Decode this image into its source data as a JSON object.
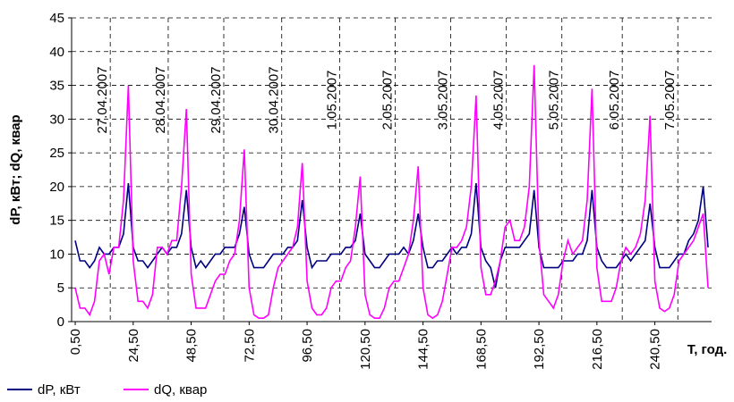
{
  "chart_data": {
    "type": "line",
    "y_label": "dP, кВт; dQ, квар",
    "x_label": "T, год.",
    "x": [
      0.5,
      2.5,
      4.5,
      6.5,
      8.5,
      10.5,
      12.5,
      14.5,
      16.5,
      18.5,
      20.5,
      22.5,
      24.5,
      26.5,
      28.5,
      30.5,
      32.5,
      34.5,
      36.5,
      38.5,
      40.5,
      42.5,
      44.5,
      46.5,
      48.5,
      50.5,
      52.5,
      54.5,
      56.5,
      58.5,
      60.5,
      62.5,
      64.5,
      66.5,
      68.5,
      70.5,
      72.5,
      74.5,
      76.5,
      78.5,
      80.5,
      82.5,
      84.5,
      86.5,
      88.5,
      90.5,
      92.5,
      94.5,
      96.5,
      98.5,
      100.5,
      102.5,
      104.5,
      106.5,
      108.5,
      110.5,
      112.5,
      114.5,
      116.5,
      118.5,
      120.5,
      122.5,
      124.5,
      126.5,
      128.5,
      130.5,
      132.5,
      134.5,
      136.5,
      138.5,
      140.5,
      142.5,
      144.5,
      146.5,
      148.5,
      150.5,
      152.5,
      154.5,
      156.5,
      158.5,
      160.5,
      162.5,
      164.5,
      166.5,
      168.5,
      170.5,
      172.5,
      174.5,
      176.5,
      178.5,
      180.5,
      182.5,
      184.5,
      186.5,
      188.5,
      190.5,
      192.5,
      194.5,
      196.5,
      198.5,
      200.5,
      202.5,
      204.5,
      206.5,
      208.5,
      210.5,
      212.5,
      214.5,
      216.5,
      218.5,
      220.5,
      222.5,
      224.5,
      226.5,
      228.5,
      230.5,
      232.5,
      234.5,
      236.5,
      238.5,
      240.5,
      242.5,
      244.5,
      246.5,
      248.5,
      250.5,
      252.5,
      254.5,
      256.5,
      258.5,
      260.5,
      262.5
    ],
    "series": [
      {
        "name": "dP, кВт",
        "color": "#000080",
        "values": [
          12,
          9,
          9,
          8,
          9,
          11,
          10,
          10,
          11,
          11,
          13,
          20.5,
          11,
          9,
          9,
          8,
          9,
          10,
          11,
          10,
          11,
          11,
          13,
          19.5,
          11,
          8,
          9,
          8,
          9,
          10,
          10,
          11,
          11,
          11,
          13,
          17,
          10,
          8,
          8,
          8,
          9,
          10,
          10,
          10,
          11,
          11,
          12,
          18,
          11,
          8,
          9,
          9,
          9,
          10,
          10,
          10,
          11,
          11,
          12,
          16,
          10,
          9,
          8,
          8,
          9,
          10,
          10,
          10,
          11,
          10,
          12,
          16,
          11,
          8,
          8,
          9,
          9,
          10,
          11,
          10,
          11,
          11,
          13,
          20.5,
          11,
          9,
          8,
          5,
          9,
          11,
          11,
          11,
          11,
          12,
          13,
          19.5,
          11,
          8,
          8,
          8,
          8,
          9,
          9,
          9,
          10,
          10,
          12,
          19.5,
          11,
          9,
          8,
          8,
          8,
          9,
          10,
          9,
          10,
          11,
          12,
          17.5,
          11,
          8,
          8,
          8,
          9,
          10,
          10,
          12,
          13,
          15,
          20,
          11
        ]
      },
      {
        "name": "dQ, квар",
        "color": "#ff00ff",
        "values": [
          5,
          2,
          2,
          1,
          3,
          9,
          10,
          7,
          11,
          11,
          18,
          35,
          9,
          3,
          3,
          2,
          4,
          11,
          11,
          10,
          12,
          12,
          20,
          31.5,
          7,
          2,
          2,
          2,
          4,
          6,
          7,
          7,
          9,
          10,
          15,
          25.5,
          5,
          1,
          0.5,
          0.5,
          1,
          5,
          8,
          9,
          10,
          11,
          14,
          23.5,
          6,
          2,
          1,
          1,
          2,
          5,
          6,
          6,
          8,
          9,
          14,
          21.5,
          4,
          1,
          0.5,
          0.5,
          2,
          5,
          6,
          6,
          8,
          10,
          15,
          23,
          5,
          1,
          0.5,
          1,
          3,
          7,
          11,
          11,
          12,
          14,
          20,
          33.5,
          8,
          4,
          4,
          6,
          9,
          14,
          15,
          12,
          12,
          14,
          20,
          38,
          12,
          4,
          3,
          2,
          4,
          9,
          12,
          10,
          11,
          12,
          18,
          34.5,
          8,
          3,
          3,
          3,
          5,
          9,
          11,
          10,
          11,
          13,
          18,
          30.5,
          6,
          2,
          1.5,
          2,
          4,
          9,
          10,
          11,
          12,
          14,
          16,
          5
        ]
      }
    ],
    "xlim": [
      -1,
      264
    ],
    "xticks": [
      {
        "value": 0.5,
        "label": "0,50"
      },
      {
        "value": 24.5,
        "label": "24,50"
      },
      {
        "value": 48.5,
        "label": "48,50"
      },
      {
        "value": 72.5,
        "label": "72,50"
      },
      {
        "value": 96.5,
        "label": "96,50"
      },
      {
        "value": 120.5,
        "label": "120,50"
      },
      {
        "value": 144.5,
        "label": "144,50"
      },
      {
        "value": 168.5,
        "label": "168,50"
      },
      {
        "value": 192.5,
        "label": "192,50"
      },
      {
        "value": 216.5,
        "label": "216,50"
      },
      {
        "value": 240.5,
        "label": "240,50"
      }
    ],
    "ylim": [
      0,
      45
    ],
    "yticks": [
      0,
      5,
      10,
      15,
      20,
      25,
      30,
      35,
      40,
      45
    ],
    "grid": true,
    "date_lines": [
      {
        "x": 15,
        "label": "27.04.2007"
      },
      {
        "x": 39,
        "label": "28.04.2007"
      },
      {
        "x": 62,
        "label": "29.04.2007"
      },
      {
        "x": 86,
        "label": "30.04.2007"
      },
      {
        "x": 110,
        "label": "1.05.2007"
      },
      {
        "x": 133,
        "label": "2.05.2007"
      },
      {
        "x": 156,
        "label": "3.05.2007"
      },
      {
        "x": 179,
        "label": "4.05.2007"
      },
      {
        "x": 202,
        "label": "5.05.2007"
      },
      {
        "x": 227,
        "label": "6.05.2007"
      },
      {
        "x": 250,
        "label": "7.05.2007"
      }
    ],
    "legend": "bottom-left"
  }
}
